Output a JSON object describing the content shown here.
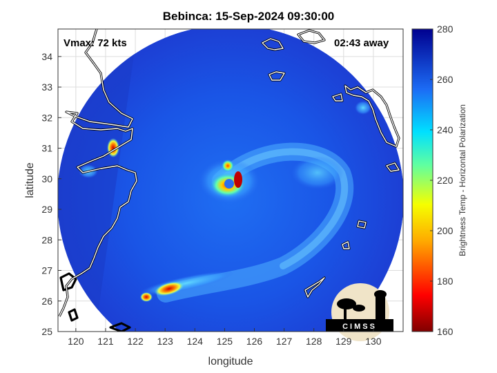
{
  "title": "Bebinca: 15-Sep-2024 09:30:00",
  "annotations": {
    "vmax": "Vmax: 72 kts",
    "away": "02:43 away"
  },
  "axes": {
    "xlabel": "longitude",
    "ylabel": "latitude",
    "xlim": [
      119.4,
      131.0
    ],
    "ylim": [
      25,
      34.9
    ],
    "xticks": [
      120,
      121,
      122,
      123,
      124,
      125,
      126,
      127,
      128,
      129,
      130
    ],
    "yticks": [
      25,
      26,
      27,
      28,
      29,
      30,
      31,
      32,
      33,
      34
    ],
    "grid": true
  },
  "colorbar": {
    "label": "Brightness Temp - Horizontal Polarization",
    "range": [
      160,
      280
    ],
    "ticks": [
      160,
      180,
      200,
      220,
      240,
      260,
      280
    ],
    "colormap": "jet"
  },
  "storm": {
    "center_lon": 125.2,
    "center_lat": 30.1,
    "swath_center_lon": 124.9,
    "swath_center_lat": 29.4
  },
  "logo": {
    "text": "CIMSS"
  },
  "colors": {
    "background_swath": "#2a4fe0",
    "frame": "#000000",
    "grid": "#d9d9d9"
  }
}
